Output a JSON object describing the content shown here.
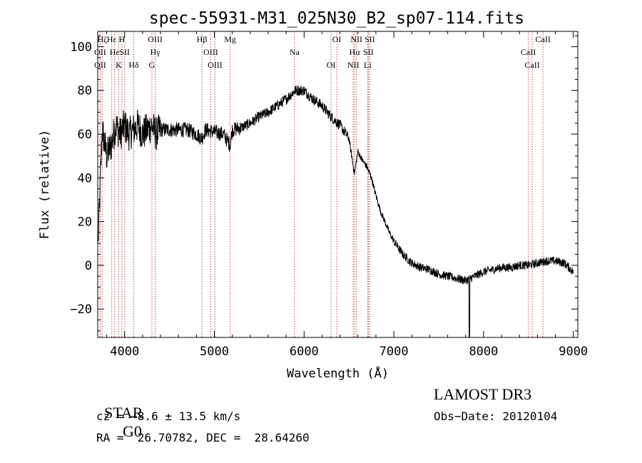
{
  "chart_data": {
    "type": "line",
    "title": "spec-55931-M31_025N30_B2_sp07-114.fits",
    "xlabel": "Wavelength (Å)",
    "ylabel": "Flux (relative)",
    "xlim": [
      3700,
      9050
    ],
    "ylim": [
      -33,
      107
    ],
    "x_ticks": [
      4000,
      5000,
      6000,
      7000,
      8000,
      9000
    ],
    "y_ticks": [
      -20,
      0,
      20,
      40,
      60,
      80,
      100
    ],
    "x_tick_labels": [
      "4000",
      "5000",
      "6000",
      "7000",
      "8000",
      "9000"
    ],
    "y_tick_labels": [
      "−20",
      "0",
      "20",
      "40",
      "60",
      "80",
      "100"
    ],
    "grid": false,
    "series": [
      {
        "name": "spectrum",
        "x": [
          3700,
          3750,
          3800,
          3850,
          3900,
          3950,
          4000,
          4050,
          4100,
          4150,
          4200,
          4250,
          4300,
          4350,
          4400,
          4500,
          4600,
          4700,
          4800,
          4860,
          4900,
          5000,
          5100,
          5175,
          5200,
          5300,
          5400,
          5500,
          5600,
          5700,
          5800,
          5900,
          6000,
          6100,
          6200,
          6300,
          6400,
          6500,
          6560,
          6600,
          6650,
          6700,
          6750,
          6800,
          6850,
          6900,
          6950,
          7000,
          7050,
          7100,
          7150,
          7200,
          7300,
          7400,
          7500,
          7600,
          7700,
          7800,
          7900,
          8000,
          8100,
          8200,
          8300,
          8400,
          8500,
          8600,
          8700,
          8800,
          8900,
          9000
        ],
        "y": [
          5,
          62,
          50,
          55,
          64,
          60,
          64,
          60,
          62,
          64,
          60,
          62,
          64,
          60,
          62,
          62,
          62,
          62,
          60,
          58,
          62,
          61,
          60,
          55,
          62,
          63,
          65,
          68,
          70,
          73,
          76,
          80,
          80,
          76,
          73,
          68,
          64,
          58,
          42,
          52,
          48,
          45,
          40,
          32,
          25,
          20,
          15,
          11,
          8,
          5,
          3,
          1,
          -1,
          -2,
          -4,
          -5,
          -6,
          -7,
          -5,
          -3,
          -2,
          -1,
          -1,
          0,
          0,
          1,
          2,
          2,
          1,
          -3
        ]
      }
    ],
    "line_ids": [
      {
        "label": "Hζ",
        "x": 3750
      },
      {
        "label": "OII",
        "x": 3727
      },
      {
        "label": "OII",
        "x": 3727
      },
      {
        "label": "Hε",
        "x": 3856
      },
      {
        "label": "He",
        "x": 3889
      },
      {
        "label": "K",
        "x": 3934
      },
      {
        "label": "H",
        "x": 3969
      },
      {
        "label": "SII",
        "x": 4000
      },
      {
        "label": "Hδ",
        "x": 4102
      },
      {
        "label": "OIII",
        "x": 4340
      },
      {
        "label": "Hγ",
        "x": 4341
      },
      {
        "label": "G",
        "x": 4304
      },
      {
        "label": "Hβ",
        "x": 4861
      },
      {
        "label": "OIII",
        "x": 4959
      },
      {
        "label": "OIII",
        "x": 5007
      },
      {
        "label": "Mg",
        "x": 5175
      },
      {
        "label": "Na",
        "x": 5893
      },
      {
        "label": "OI",
        "x": 6300
      },
      {
        "label": "OI",
        "x": 6364
      },
      {
        "label": "Hα",
        "x": 6563
      },
      {
        "label": "NII",
        "x": 6548
      },
      {
        "label": "NII",
        "x": 6583
      },
      {
        "label": "SII",
        "x": 6716
      },
      {
        "label": "Li",
        "x": 6708
      },
      {
        "label": "SII",
        "x": 6731
      },
      {
        "label": "CaII",
        "x": 8498
      },
      {
        "label": "CaII",
        "x": 8542
      },
      {
        "label": "CaII",
        "x": 8662
      }
    ]
  },
  "info": {
    "class": "STAR",
    "subclass": "G0",
    "survey": "LAMOST DR3",
    "cz": "cz = −8.6 ± 13.5 km/s",
    "obs_date": "Obs−Date: 20120104",
    "radec": "RA =  26.70782, DEC =  28.64260"
  },
  "colors": {
    "spectrum": "#000000",
    "line_markers": "#c0504d",
    "axes": "#000000"
  }
}
